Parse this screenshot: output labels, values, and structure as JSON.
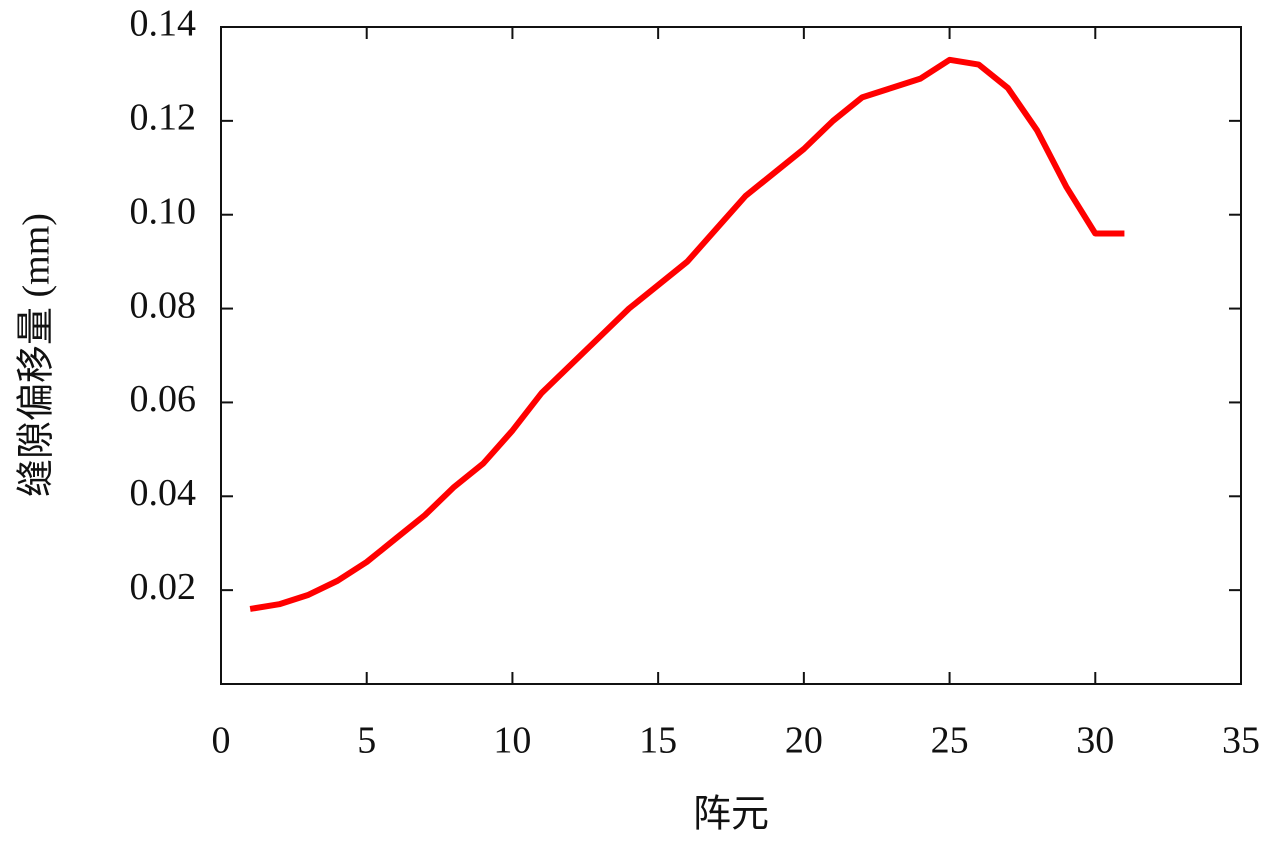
{
  "chart_data": {
    "type": "line",
    "x_label": "阵元",
    "y_label": "缝隙偏移量 (mm)",
    "x": [
      1,
      2,
      3,
      4,
      5,
      6,
      7,
      8,
      9,
      10,
      11,
      12,
      13,
      14,
      15,
      16,
      17,
      18,
      19,
      20,
      21,
      22,
      23,
      24,
      25,
      26,
      27,
      28,
      29,
      30,
      31
    ],
    "series": [
      {
        "color": "#ff0000",
        "values": [
          0.016,
          0.017,
          0.019,
          0.022,
          0.026,
          0.031,
          0.036,
          0.042,
          0.047,
          0.054,
          0.062,
          0.068,
          0.074,
          0.08,
          0.085,
          0.09,
          0.097,
          0.104,
          0.109,
          0.114,
          0.12,
          0.125,
          0.127,
          0.129,
          0.133,
          0.132,
          0.127,
          0.118,
          0.106,
          0.096,
          0.096
        ]
      }
    ],
    "xlim": [
      0,
      35
    ],
    "xticks": [
      0,
      5,
      10,
      15,
      20,
      25,
      30,
      35
    ],
    "ylim": [
      0,
      0.14
    ],
    "yticks": [
      0.02,
      0.04,
      0.06,
      0.08,
      {
        "value": 0.1,
        "label": "0.10"
      },
      0.12,
      0.14
    ]
  }
}
